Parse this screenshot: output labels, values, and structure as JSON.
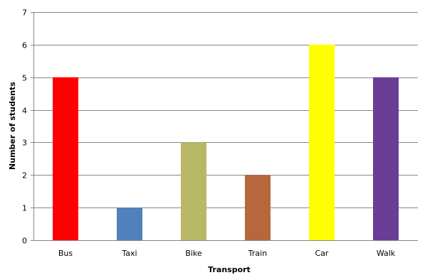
{
  "chart_data": {
    "type": "bar",
    "title": "",
    "xlabel": "Transport",
    "ylabel": "Number of students",
    "categories": [
      "Bus",
      "Taxi",
      "Bike",
      "Train",
      "Car",
      "Walk"
    ],
    "values": [
      5,
      1,
      3,
      2,
      6,
      5
    ],
    "colors": [
      "#ff0000",
      "#4f81bd",
      "#b8b867",
      "#b8663c",
      "#ffff00",
      "#6a3d96"
    ],
    "ylim": [
      0,
      7
    ],
    "yticks": [
      0,
      1,
      2,
      3,
      4,
      5,
      6,
      7
    ],
    "grid": true,
    "gridColor": "#868686",
    "legend": "none"
  }
}
